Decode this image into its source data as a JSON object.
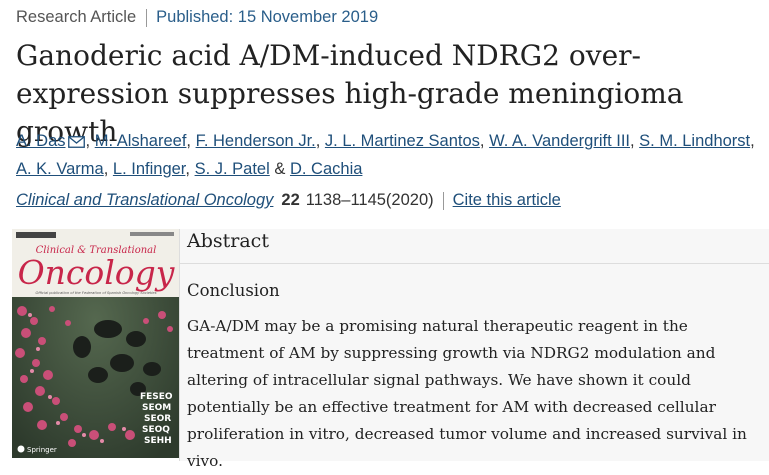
{
  "header": {
    "article_type": "Research Article",
    "published": "Published: 15 November 2019"
  },
  "title": "Ganoderic acid A/DM-induced NDRG2 over-expression suppresses high-grade meningioma growth",
  "authors": {
    "list": [
      "A. Das",
      "M. Alshareef",
      "F. Henderson Jr.",
      "J. L. Martinez Santos",
      "W. A. Vandergrift III",
      "S. M. Lindhorst",
      "A. K. Varma",
      "L. Infinger",
      "S. J. Patel",
      "D. Cachia"
    ],
    "separator": ", ",
    "and": "&",
    "email_icon": "envelope-icon"
  },
  "journal": {
    "name": "Clinical and Translational Oncology",
    "volume": "22",
    "pages": "1138–1145(2020)",
    "cite_label": "Cite this article"
  },
  "cover": {
    "top_line": "Clinical & Translational",
    "title": "Oncology",
    "tagline": "Official publication of the Federation of Spanish Oncology Societies",
    "publisher": "Springer",
    "side_words": [
      "FESEO",
      "SEOM",
      "SEOR",
      "SEOQ",
      "SEHH"
    ],
    "colors": {
      "title": "#c8264a",
      "background": "#3c4a3a",
      "blossom": "#c94f78"
    }
  },
  "abstract": {
    "heading": "Abstract",
    "section": "Conclusion",
    "text": "GA-A/DM may be a promising natural therapeutic reagent in the treatment of AM by suppressing growth via NDRG2 modulation and altering of intracellular signal pathways. We have shown it could potentially be an effective treatment for AM with decreased cellular proliferation in vitro, decreased tumor volume and increased survival in vivo."
  }
}
